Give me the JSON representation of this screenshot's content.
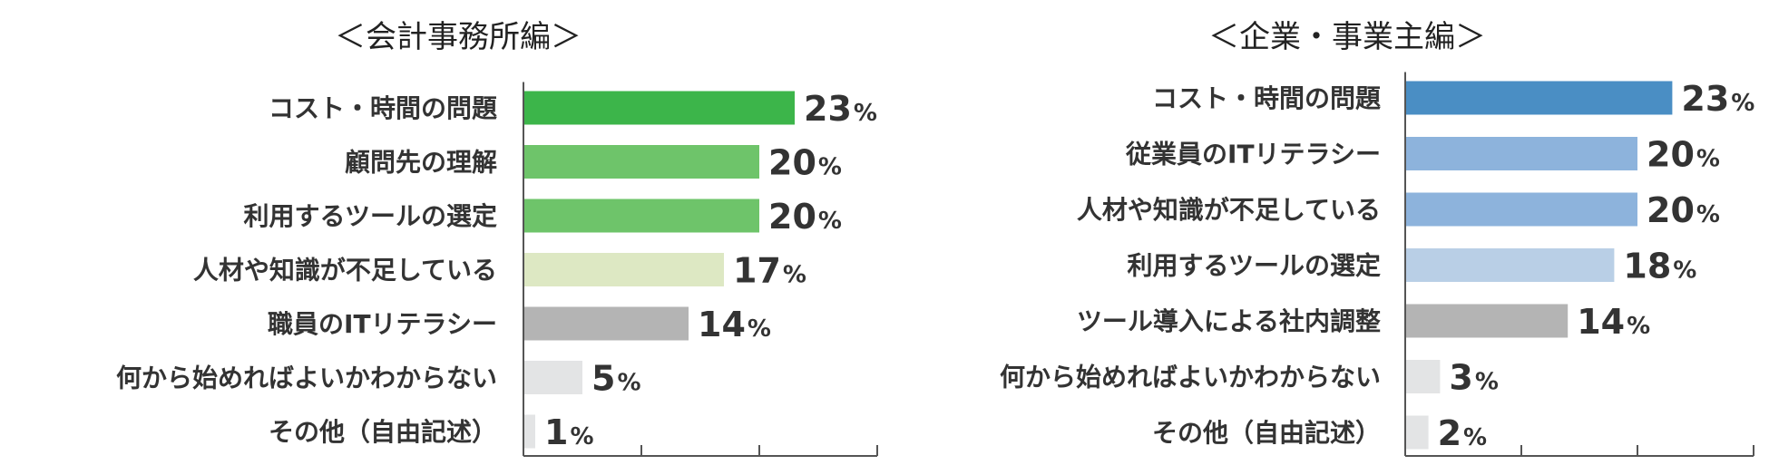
{
  "chart_data": [
    {
      "type": "bar",
      "orientation": "horizontal",
      "title": "＜会計事務所編＞",
      "categories": [
        "コスト・時間の問題",
        "顧問先の理解",
        "利用するツールの選定",
        "人材や知識が不足している",
        "職員のITリテラシー",
        "何から始めればよいかわからない",
        "その他（自由記述）"
      ],
      "values": [
        23,
        20,
        20,
        17,
        14,
        5,
        1
      ],
      "unit": "%",
      "colors": [
        "#3cb54a",
        "#6ec46a",
        "#6ec46a",
        "#dde8c3",
        "#b4b4b4",
        "#e3e4e5",
        "#e3e4e5"
      ],
      "xlim": [
        0,
        30
      ],
      "xticks": [
        0,
        10,
        20,
        30
      ],
      "grid": false,
      "legend": "none"
    },
    {
      "type": "bar",
      "orientation": "horizontal",
      "title": "＜企業・事業主編＞",
      "categories": [
        "コスト・時間の問題",
        "従業員のITリテラシー",
        "人材や知識が不足している",
        "利用するツールの選定",
        "ツール導入による社内調整",
        "何から始めればよいかわからない",
        "その他（自由記述）"
      ],
      "values": [
        23,
        20,
        20,
        18,
        14,
        3,
        2
      ],
      "unit": "%",
      "colors": [
        "#4a8ec4",
        "#8db3dc",
        "#8db3dc",
        "#b9cfe6",
        "#b4b4b4",
        "#e3e4e5",
        "#e3e4e5"
      ],
      "xlim": [
        0,
        30
      ],
      "xticks": [
        0,
        10,
        20,
        30
      ],
      "grid": false,
      "legend": "none"
    }
  ]
}
